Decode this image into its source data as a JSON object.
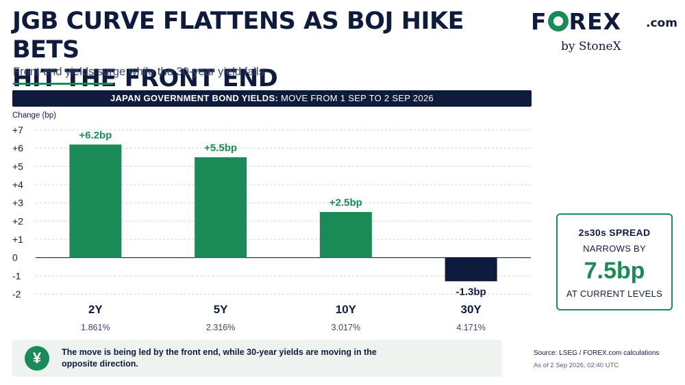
{
  "header": {
    "title_line1": "JGB CURVE FLATTENS AS BOJ HIKE BETS",
    "title_line2": "HIT THE FRONT END",
    "subtitle": "Front-end yields surge while the 30-year yield falls"
  },
  "logo": {
    "brand_prefix": "F",
    "brand_suffix": "REX",
    "domain": ".com",
    "byline": "by StoneX"
  },
  "banner": {
    "bold": "JAPAN GOVERNMENT BOND YIELDS:",
    "rest": "MOVE FROM 1 SEP TO 2 SEP 2026"
  },
  "chart_data": {
    "type": "bar",
    "ylabel": "Change (bp)",
    "categories": [
      "2Y",
      "5Y",
      "10Y",
      "30Y"
    ],
    "values": [
      6.2,
      5.5,
      2.5,
      -1.3
    ],
    "data_labels": [
      "+6.2bp",
      "+5.5bp",
      "+2.5bp",
      "-1.3bp"
    ],
    "sublabels": [
      "1.861%",
      "2.316%",
      "3.017%",
      "4.171%"
    ],
    "ylim": [
      -2,
      7
    ],
    "yticks": [
      7,
      6,
      5,
      4,
      3,
      2,
      1,
      0,
      -1,
      -2
    ],
    "ytick_labels": [
      "+7",
      "+6",
      "+5",
      "+4",
      "+3",
      "+2",
      "+1",
      "0",
      "-1",
      "-2"
    ],
    "grid": "horizontal dashed",
    "colors": {
      "positive": "#1a8a57",
      "negative": "#0f1b3d"
    }
  },
  "spread_box": {
    "line1": "2s30s SPREAD",
    "line2": "NARROWS BY",
    "big": "7.5bp",
    "line3": "AT CURRENT LEVELS"
  },
  "note": {
    "icon": "yen-icon",
    "text": "The move is being led by the front end, while 30-year yields are moving in the opposite direction."
  },
  "footer": {
    "source": "Source: LSEG / FOREX.com calculations",
    "asof": "As of 2 Sep 2026, 02:40 UTC"
  },
  "colors": {
    "navy": "#0f1b3d",
    "green": "#1a8a57"
  }
}
